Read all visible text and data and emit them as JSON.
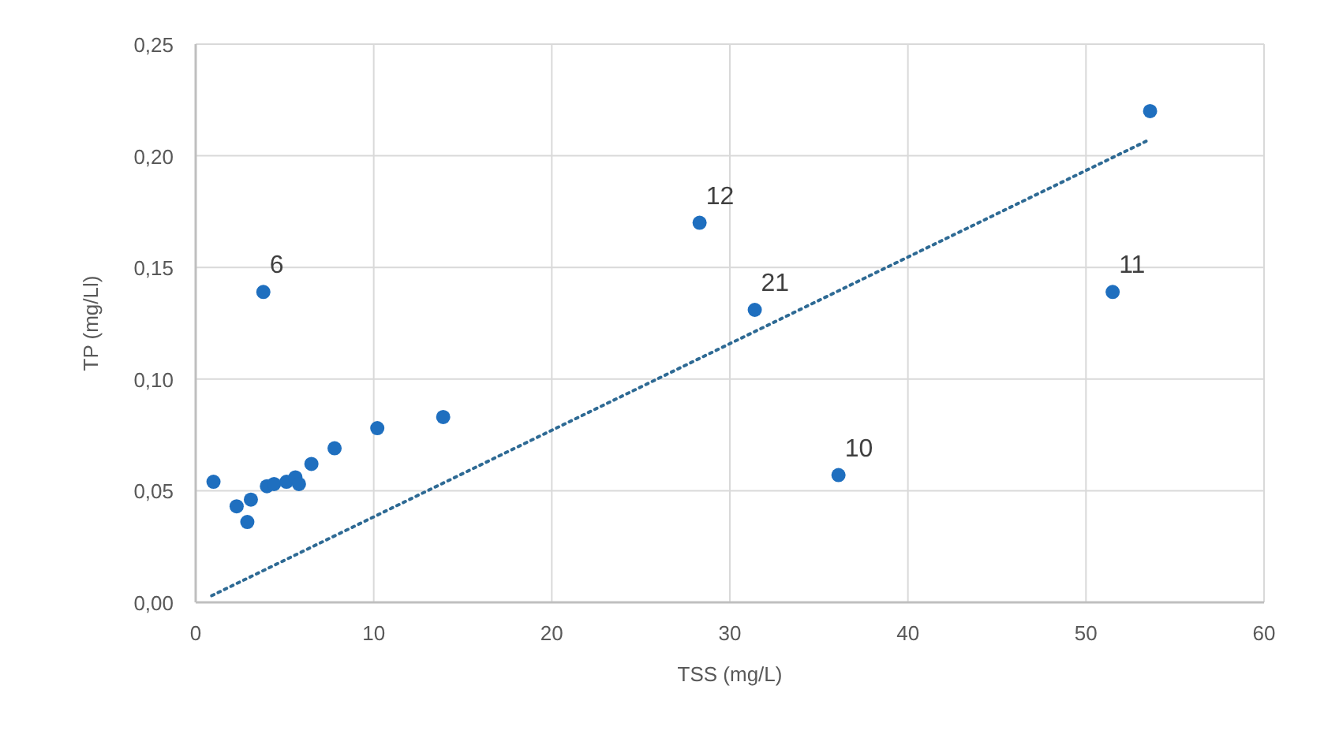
{
  "chart_data": {
    "type": "scatter",
    "xlabel": "TSS (mg/L)",
    "ylabel": "TP (mg/Ll)",
    "xlim": [
      0,
      60
    ],
    "xticks": [
      0,
      10,
      20,
      30,
      40,
      50,
      60
    ],
    "ylim": [
      0,
      0.25
    ],
    "yticks": [
      {
        "value": 0,
        "label": "0,00"
      },
      {
        "value": 0.05,
        "label": "0,05"
      },
      {
        "value": 0.1,
        "label": "0,10"
      },
      {
        "value": 0.15,
        "label": "0,15"
      },
      {
        "value": 0.2,
        "label": "0,20"
      },
      {
        "value": 0.25,
        "label": "0,25"
      }
    ],
    "grid": true,
    "marker": "circle",
    "series": [
      {
        "color": "#1f6fbf",
        "x": [
          1.0,
          2.3,
          2.9,
          3.1,
          4.0,
          4.4,
          5.1,
          5.6,
          5.8,
          6.5,
          7.8,
          10.2,
          13.9,
          3.8,
          28.3,
          31.4,
          36.1,
          51.5,
          53.6
        ],
        "values": [
          0.054,
          0.043,
          0.036,
          0.046,
          0.052,
          0.053,
          0.054,
          0.056,
          0.053,
          0.062,
          0.069,
          0.078,
          0.083,
          0.139,
          0.17,
          0.131,
          0.057,
          0.139,
          0.22
        ]
      },
      {
        "type": "line",
        "color": "#2e6a94",
        "line_style": "dotted",
        "marker": "none",
        "x": [
          0.9,
          53.5
        ],
        "values": [
          0.003,
          0.207
        ]
      }
    ],
    "annotations": [
      {
        "text": "6",
        "x": 3.8,
        "y": 0.139
      },
      {
        "text": "12",
        "x": 28.3,
        "y": 0.17
      },
      {
        "text": "21",
        "x": 31.4,
        "y": 0.131
      },
      {
        "text": "10",
        "x": 36.1,
        "y": 0.057
      },
      {
        "text": "11",
        "x": 51.5,
        "y": 0.139
      }
    ]
  }
}
